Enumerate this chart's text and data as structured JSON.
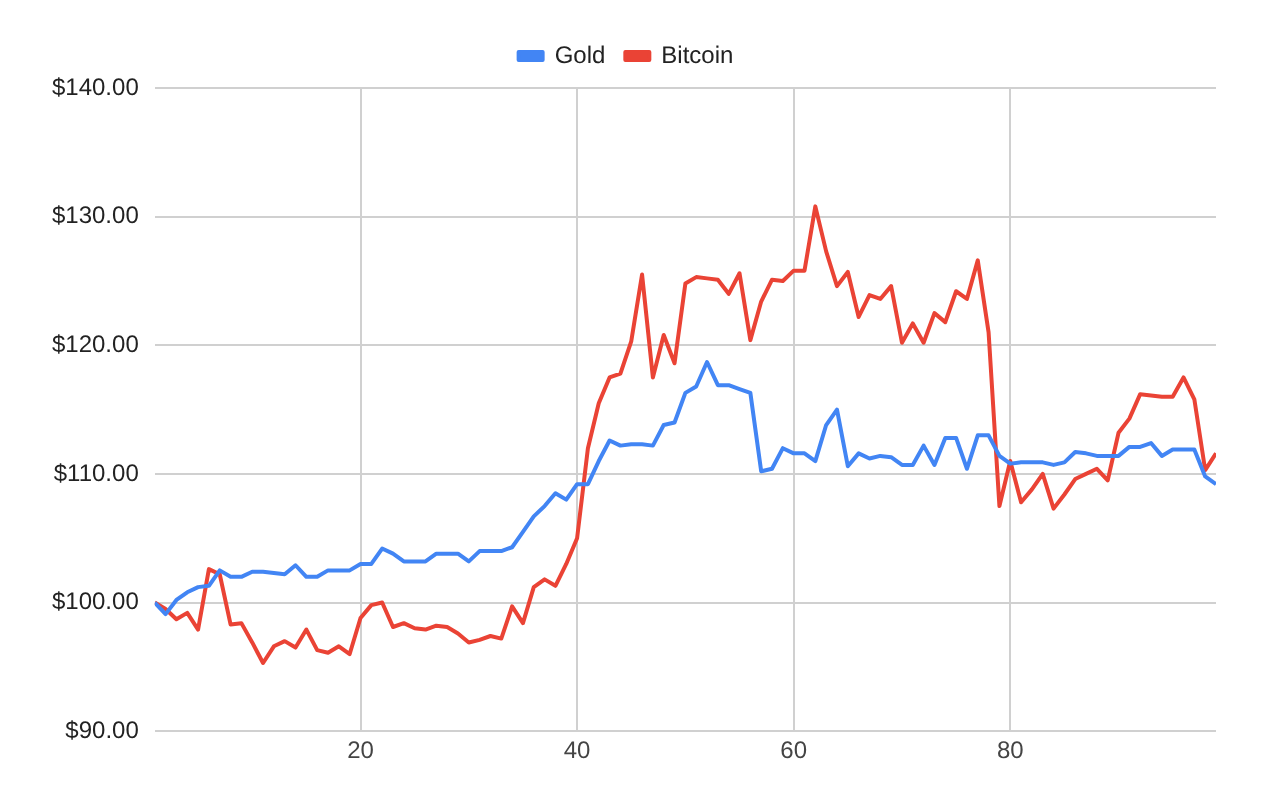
{
  "chart_data": {
    "type": "line",
    "x": [
      1,
      2,
      3,
      4,
      5,
      6,
      7,
      8,
      9,
      10,
      11,
      12,
      13,
      14,
      15,
      16,
      17,
      18,
      19,
      20,
      21,
      22,
      23,
      24,
      25,
      26,
      27,
      28,
      29,
      30,
      31,
      32,
      33,
      34,
      35,
      36,
      37,
      38,
      39,
      40,
      41,
      42,
      43,
      44,
      45,
      46,
      47,
      48,
      49,
      50,
      51,
      52,
      53,
      54,
      55,
      56,
      57,
      58,
      59,
      60,
      61,
      62,
      63,
      64,
      65,
      66,
      67,
      68,
      69,
      70,
      71,
      72,
      73,
      74,
      75,
      76,
      77,
      78,
      79,
      80,
      81,
      82,
      83,
      84,
      85,
      86,
      87,
      88,
      89,
      90,
      91,
      92,
      93,
      94,
      95,
      96,
      97,
      98,
      99
    ],
    "series": [
      {
        "name": "Gold",
        "color": "#4285f4",
        "values": [
          100,
          99.1,
          100.2,
          100.8,
          101.2,
          101.3,
          102.5,
          102,
          102,
          102.4,
          102.4,
          102.3,
          102.2,
          102.9,
          102,
          102,
          102.5,
          102.5,
          102.5,
          103,
          103,
          104.2,
          103.8,
          103.2,
          103.2,
          103.2,
          103.8,
          103.8,
          103.8,
          103.2,
          104,
          104,
          104,
          104.3,
          105.5,
          106.7,
          107.5,
          108.5,
          108,
          109.2,
          109.2,
          111,
          112.6,
          112.2,
          112.3,
          112.3,
          112.2,
          113.8,
          114,
          116.3,
          116.8,
          118.7,
          116.9,
          116.9,
          116.6,
          116.3,
          110.2,
          110.4,
          112,
          111.6,
          111.6,
          111,
          113.8,
          115,
          110.6,
          111.6,
          111.2,
          111.4,
          111.3,
          110.7,
          110.7,
          112.2,
          110.7,
          112.8,
          112.8,
          110.4,
          113,
          113,
          111.4,
          110.8,
          110.9,
          110.9,
          110.9,
          110.7,
          110.9,
          111.7,
          111.6,
          111.4,
          111.4,
          111.4,
          112.1,
          112.1,
          112.4,
          111.4,
          111.9,
          111.9,
          111.9,
          109.8,
          109.2
        ]
      },
      {
        "name": "Bitcoin",
        "color": "#ea4335",
        "values": [
          100,
          99.5,
          98.7,
          99.2,
          97.9,
          102.6,
          102.2,
          98.3,
          98.4,
          96.9,
          95.3,
          96.6,
          97,
          96.5,
          97.9,
          96.3,
          96.1,
          96.6,
          96,
          98.8,
          99.8,
          100,
          98.1,
          98.4,
          98,
          97.9,
          98.2,
          98.1,
          97.6,
          96.9,
          97.1,
          97.4,
          97.2,
          99.7,
          98.4,
          101.2,
          101.8,
          101.3,
          103,
          105,
          112,
          115.5,
          117.5,
          117.8,
          120.3,
          125.5,
          117.5,
          120.8,
          118.6,
          124.8,
          125.3,
          125.2,
          125.1,
          124,
          125.6,
          120.4,
          123.4,
          125.1,
          125,
          125.8,
          125.8,
          130.8,
          127.3,
          124.6,
          125.7,
          122.2,
          123.9,
          123.6,
          124.6,
          120.2,
          121.7,
          120.2,
          122.5,
          121.8,
          124.2,
          123.6,
          126.6,
          121,
          107.5,
          111,
          107.8,
          108.8,
          110,
          107.3,
          108.4,
          109.6,
          110,
          110.4,
          109.5,
          113.2,
          114.3,
          116.2,
          116.1,
          116,
          116,
          117.5,
          115.8,
          110.3,
          111.6
        ]
      }
    ],
    "xlim": [
      1,
      99
    ],
    "xticks": [
      20,
      40,
      60,
      80
    ],
    "ylim": [
      90,
      140
    ],
    "yticks": [
      {
        "value": 90,
        "label": "$90.00"
      },
      {
        "value": 100,
        "label": "$100.00"
      },
      {
        "value": 110,
        "label": "$110.00"
      },
      {
        "value": 120,
        "label": "$120.00"
      },
      {
        "value": 130,
        "label": "$130.00"
      },
      {
        "value": 140,
        "label": "$140.00"
      }
    ],
    "grid": true,
    "legend": "top",
    "marker": "none",
    "line_style": "solid"
  }
}
